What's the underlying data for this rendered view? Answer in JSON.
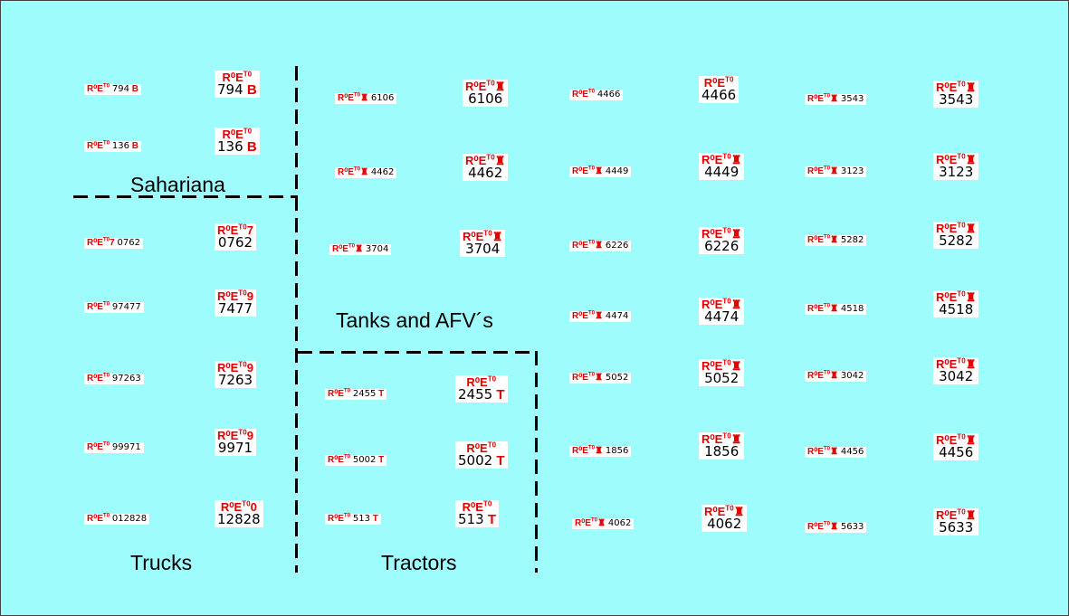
{
  "prefix": "R⁰E",
  "prefix_sup": "T0",
  "labels": {
    "sahariana": "Sahariana",
    "tanks": "Tanks and AFV´s",
    "trucks": "Trucks",
    "tractors": "Tractors"
  },
  "decals": [
    {
      "size": "small",
      "sign": "",
      "number": "794",
      "suffix": "B"
    },
    {
      "size": "big",
      "sign": "",
      "number": "794",
      "suffix": "B"
    },
    {
      "size": "small",
      "sign": "",
      "number": "136",
      "suffix": "B"
    },
    {
      "size": "big",
      "sign": "",
      "number": "136",
      "suffix": "B"
    },
    {
      "size": "small",
      "sign": "7",
      "number": "0762",
      "suffix": ""
    },
    {
      "size": "big",
      "sign": "7",
      "number": "0762",
      "suffix": ""
    },
    {
      "size": "small",
      "sign": "",
      "number": "97477",
      "suffix": ""
    },
    {
      "size": "big",
      "sign": "9",
      "number": "7477",
      "suffix": ""
    },
    {
      "size": "small",
      "sign": "",
      "number": "97263",
      "suffix": ""
    },
    {
      "size": "big",
      "sign": "9",
      "number": "7263",
      "suffix": ""
    },
    {
      "size": "small",
      "sign": "",
      "number": "99971",
      "suffix": ""
    },
    {
      "size": "big",
      "sign": "9",
      "number": "9971",
      "suffix": ""
    },
    {
      "size": "small",
      "sign": "",
      "number": "012828",
      "suffix": ""
    },
    {
      "size": "big",
      "sign": "0",
      "number": "12828",
      "suffix": ""
    },
    {
      "size": "small",
      "sign": "♜",
      "number": "6106",
      "suffix": ""
    },
    {
      "size": "big",
      "sign": "♜",
      "number": "6106",
      "suffix": ""
    },
    {
      "size": "small",
      "sign": "♜",
      "number": "4462",
      "suffix": ""
    },
    {
      "size": "big",
      "sign": "♜",
      "number": "4462",
      "suffix": ""
    },
    {
      "size": "small",
      "sign": "♜",
      "number": "3704",
      "suffix": ""
    },
    {
      "size": "big",
      "sign": "♜",
      "number": "3704",
      "suffix": ""
    },
    {
      "size": "small",
      "sign": "",
      "number": "2455",
      "suffix": "T"
    },
    {
      "size": "big",
      "sign": "",
      "number": "2455",
      "suffix": "T"
    },
    {
      "size": "small",
      "sign": "",
      "number": "5002",
      "suffix": "T"
    },
    {
      "size": "big",
      "sign": "",
      "number": "5002",
      "suffix": "T"
    },
    {
      "size": "small",
      "sign": "",
      "number": "513",
      "suffix": "T"
    },
    {
      "size": "big",
      "sign": "",
      "number": "513",
      "suffix": "T"
    },
    {
      "size": "small",
      "sign": "",
      "number": "4466",
      "suffix": ""
    },
    {
      "size": "big",
      "sign": "",
      "number": "4466",
      "suffix": ""
    },
    {
      "size": "small",
      "sign": "♜",
      "number": "4449",
      "suffix": ""
    },
    {
      "size": "big",
      "sign": "♜",
      "number": "4449",
      "suffix": ""
    },
    {
      "size": "small",
      "sign": "♜",
      "number": "6226",
      "suffix": ""
    },
    {
      "size": "big",
      "sign": "♜",
      "number": "6226",
      "suffix": ""
    },
    {
      "size": "small",
      "sign": "♜",
      "number": "4474",
      "suffix": ""
    },
    {
      "size": "big",
      "sign": "♜",
      "number": "4474",
      "suffix": ""
    },
    {
      "size": "small",
      "sign": "♜",
      "number": "5052",
      "suffix": ""
    },
    {
      "size": "big",
      "sign": "♜",
      "number": "5052",
      "suffix": ""
    },
    {
      "size": "small",
      "sign": "♜",
      "number": "1856",
      "suffix": ""
    },
    {
      "size": "big",
      "sign": "♜",
      "number": "1856",
      "suffix": ""
    },
    {
      "size": "small",
      "sign": "♜",
      "number": "4062",
      "suffix": ""
    },
    {
      "size": "big",
      "sign": "♜",
      "number": "4062",
      "suffix": ""
    },
    {
      "size": "small",
      "sign": "♜",
      "number": "3543",
      "suffix": ""
    },
    {
      "size": "big",
      "sign": "♜",
      "number": "3543",
      "suffix": ""
    },
    {
      "size": "small",
      "sign": "♜",
      "number": "3123",
      "suffix": ""
    },
    {
      "size": "big",
      "sign": "♜",
      "number": "3123",
      "suffix": ""
    },
    {
      "size": "small",
      "sign": "♜",
      "number": "5282",
      "suffix": ""
    },
    {
      "size": "big",
      "sign": "♜",
      "number": "5282",
      "suffix": ""
    },
    {
      "size": "small",
      "sign": "♜",
      "number": "4518",
      "suffix": ""
    },
    {
      "size": "big",
      "sign": "♜",
      "number": "4518",
      "suffix": ""
    },
    {
      "size": "small",
      "sign": "♜",
      "number": "3042",
      "suffix": ""
    },
    {
      "size": "big",
      "sign": "♜",
      "number": "3042",
      "suffix": ""
    },
    {
      "size": "small",
      "sign": "♜",
      "number": "4456",
      "suffix": ""
    },
    {
      "size": "big",
      "sign": "♜",
      "number": "4456",
      "suffix": ""
    },
    {
      "size": "small",
      "sign": "♜",
      "number": "5633",
      "suffix": ""
    },
    {
      "size": "big",
      "sign": "♜",
      "number": "5633",
      "suffix": ""
    }
  ]
}
